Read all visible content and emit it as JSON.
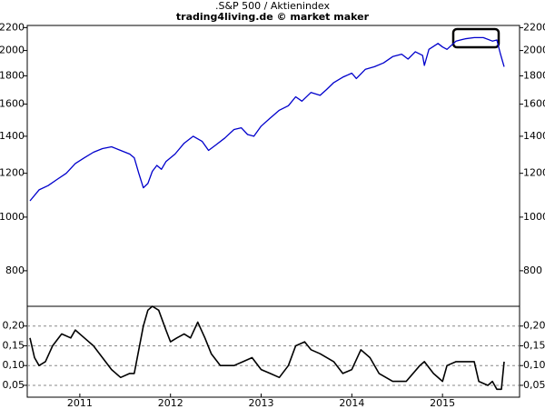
{
  "chart_data": [
    {
      "type": "line",
      "title": ".S&P 500 / Aktienindex",
      "subtitle": "trading4living.de © market maker",
      "log_scale": true,
      "color": "#0000cc",
      "xlim": [
        2010.42,
        2015.85
      ],
      "ylim": [
        690,
        2220
      ],
      "yticks": [
        800,
        1000,
        1200,
        1400,
        1600,
        1800,
        2000,
        2200
      ],
      "x": [
        2010.45,
        2010.55,
        2010.65,
        2010.75,
        2010.85,
        2010.95,
        2011.05,
        2011.15,
        2011.25,
        2011.35,
        2011.45,
        2011.55,
        2011.6,
        2011.65,
        2011.7,
        2011.75,
        2011.8,
        2011.85,
        2011.9,
        2011.95,
        2012.05,
        2012.15,
        2012.25,
        2012.35,
        2012.42,
        2012.5,
        2012.6,
        2012.7,
        2012.78,
        2012.85,
        2012.92,
        2013.0,
        2013.1,
        2013.2,
        2013.3,
        2013.38,
        2013.45,
        2013.55,
        2013.65,
        2013.72,
        2013.8,
        2013.9,
        2014.0,
        2014.05,
        2014.15,
        2014.25,
        2014.35,
        2014.45,
        2014.55,
        2014.62,
        2014.7,
        2014.78,
        2014.8,
        2014.85,
        2014.95,
        2015.0,
        2015.05,
        2015.15,
        2015.25,
        2015.35,
        2015.45,
        2015.55,
        2015.6,
        2015.64,
        2015.68
      ],
      "values": [
        1070,
        1120,
        1140,
        1170,
        1200,
        1250,
        1280,
        1310,
        1330,
        1340,
        1320,
        1300,
        1280,
        1200,
        1130,
        1150,
        1210,
        1240,
        1220,
        1260,
        1300,
        1360,
        1400,
        1370,
        1320,
        1350,
        1390,
        1440,
        1450,
        1410,
        1400,
        1460,
        1510,
        1560,
        1590,
        1650,
        1620,
        1680,
        1660,
        1700,
        1750,
        1790,
        1820,
        1780,
        1850,
        1870,
        1900,
        1950,
        1970,
        1930,
        1990,
        1960,
        1880,
        2010,
        2060,
        2030,
        2010,
        2080,
        2100,
        2110,
        2110,
        2080,
        2090,
        1970,
        1870
      ]
    },
    {
      "type": "line",
      "color": "#000000",
      "grid": true,
      "xlim": [
        2010.42,
        2015.85
      ],
      "xticks": [
        2011,
        2012,
        2013,
        2014,
        2015
      ],
      "ylim": [
        0.02,
        0.25
      ],
      "yticks": [
        {
          "value": 0.05,
          "label": "0,05"
        },
        {
          "value": 0.1,
          "label": "0,10"
        },
        {
          "value": 0.15,
          "label": "0,15"
        },
        {
          "value": 0.2,
          "label": "0,20"
        }
      ],
      "x": [
        2010.45,
        2010.5,
        2010.55,
        2010.62,
        2010.7,
        2010.8,
        2010.9,
        2010.95,
        2011.05,
        2011.15,
        2011.25,
        2011.35,
        2011.45,
        2011.55,
        2011.6,
        2011.65,
        2011.7,
        2011.75,
        2011.8,
        2011.87,
        2011.95,
        2012.0,
        2012.07,
        2012.15,
        2012.22,
        2012.3,
        2012.38,
        2012.45,
        2012.55,
        2012.7,
        2012.8,
        2012.9,
        2013.0,
        2013.1,
        2013.2,
        2013.3,
        2013.38,
        2013.48,
        2013.55,
        2013.65,
        2013.8,
        2013.9,
        2014.0,
        2014.1,
        2014.2,
        2014.3,
        2014.45,
        2014.6,
        2014.75,
        2014.8,
        2014.9,
        2015.0,
        2015.05,
        2015.15,
        2015.35,
        2015.4,
        2015.5,
        2015.55,
        2015.6,
        2015.65,
        2015.68
      ],
      "values": [
        0.17,
        0.12,
        0.1,
        0.11,
        0.15,
        0.18,
        0.17,
        0.19,
        0.17,
        0.15,
        0.12,
        0.09,
        0.07,
        0.08,
        0.08,
        0.14,
        0.2,
        0.24,
        0.25,
        0.24,
        0.19,
        0.16,
        0.17,
        0.18,
        0.17,
        0.21,
        0.17,
        0.13,
        0.1,
        0.1,
        0.11,
        0.12,
        0.09,
        0.08,
        0.07,
        0.1,
        0.15,
        0.16,
        0.14,
        0.13,
        0.11,
        0.08,
        0.09,
        0.14,
        0.12,
        0.08,
        0.06,
        0.06,
        0.1,
        0.11,
        0.08,
        0.06,
        0.1,
        0.11,
        0.11,
        0.06,
        0.05,
        0.06,
        0.04,
        0.04,
        0.11
      ]
    }
  ]
}
